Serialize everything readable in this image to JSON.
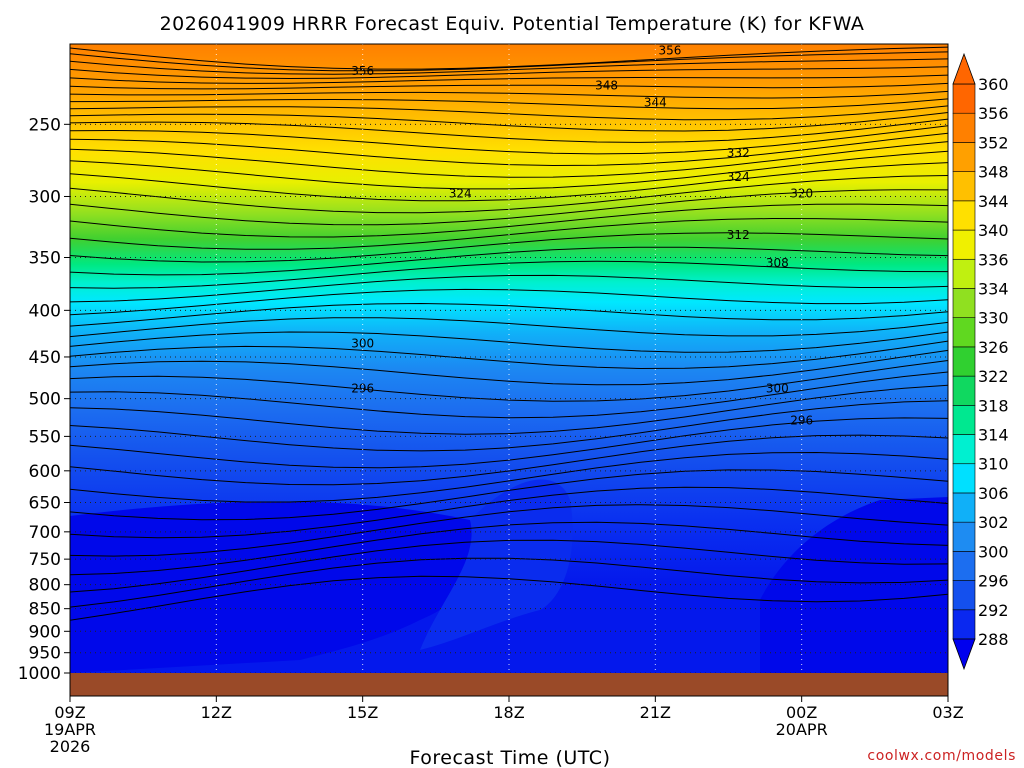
{
  "chart_data": {
    "type": "heatmap",
    "title": "2026041909 HRRR Forecast Equiv. Potential Temperature (K) for KFWA",
    "xlabel": "Forecast Time (UTC)",
    "ylabel": "",
    "credit": "coolwx.com/models",
    "x_ticks": [
      {
        "hour": 0,
        "label": "09Z",
        "sub1": "19APR",
        "sub2": "2026"
      },
      {
        "hour": 3,
        "label": "12Z",
        "sub1": "",
        "sub2": ""
      },
      {
        "hour": 6,
        "label": "15Z",
        "sub1": "",
        "sub2": ""
      },
      {
        "hour": 9,
        "label": "18Z",
        "sub1": "",
        "sub2": ""
      },
      {
        "hour": 12,
        "label": "21Z",
        "sub1": "",
        "sub2": ""
      },
      {
        "hour": 15,
        "label": "00Z",
        "sub1": "20APR",
        "sub2": ""
      },
      {
        "hour": 18,
        "label": "03Z",
        "sub1": "",
        "sub2": ""
      }
    ],
    "x_range_hours": [
      0,
      18
    ],
    "y_ticks_hpa": [
      250,
      300,
      350,
      400,
      450,
      500,
      550,
      600,
      650,
      700,
      750,
      800,
      850,
      900,
      950,
      1000
    ],
    "y_range_hpa": [
      1000,
      200
    ],
    "ground_level_hpa": 985,
    "colorbar": {
      "levels": [
        288,
        292,
        296,
        300,
        302,
        306,
        310,
        314,
        318,
        322,
        326,
        330,
        334,
        336,
        340,
        344,
        348,
        352,
        356,
        360
      ],
      "colors": [
        "#0000ee",
        "#0a28f0",
        "#1450ee",
        "#1c6ef0",
        "#1e8cf2",
        "#10b0f8",
        "#00e0ff",
        "#00f0d0",
        "#00e890",
        "#10d860",
        "#30d030",
        "#60d820",
        "#90e020",
        "#c0f010",
        "#f0f000",
        "#ffe000",
        "#ffc000",
        "#ffa000",
        "#ff8000",
        "#ff6600"
      ],
      "extend": "both"
    },
    "grid": "dotted",
    "contour_labels": [
      {
        "value": "356",
        "hour": 12.3,
        "p": 207
      },
      {
        "value": "356",
        "hour": 6.0,
        "p": 218
      },
      {
        "value": "348",
        "hour": 11.0,
        "p": 226
      },
      {
        "value": "344",
        "hour": 12.0,
        "p": 236
      },
      {
        "value": "332",
        "hour": 13.7,
        "p": 268
      },
      {
        "value": "324",
        "hour": 13.7,
        "p": 285
      },
      {
        "value": "324",
        "hour": 8.0,
        "p": 297
      },
      {
        "value": "320",
        "hour": 15.0,
        "p": 297
      },
      {
        "value": "312",
        "hour": 13.7,
        "p": 330
      },
      {
        "value": "308",
        "hour": 14.5,
        "p": 354
      },
      {
        "value": "300",
        "hour": 6.0,
        "p": 434
      },
      {
        "value": "296",
        "hour": 6.0,
        "p": 486
      },
      {
        "value": "300",
        "hour": 14.5,
        "p": 486
      },
      {
        "value": "296",
        "hour": 15.0,
        "p": 527
      }
    ]
  }
}
